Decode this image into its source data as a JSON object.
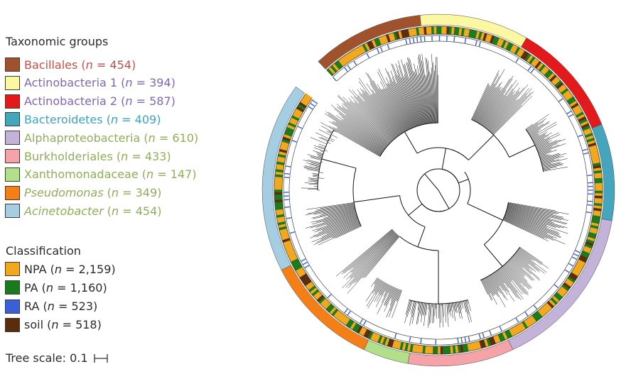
{
  "legend": {
    "taxonomic_title": "Taxonomic groups",
    "taxa": [
      {
        "name": "Bacillales",
        "count": "454",
        "italic_name": false,
        "swatch": "#a0522d",
        "text_color": "#c2504a"
      },
      {
        "name": "Actinobacteria 1",
        "count": "394",
        "italic_name": false,
        "swatch": "#fbf7a2",
        "text_color": "#7e68b4"
      },
      {
        "name": "Actinobacteria 2",
        "count": "587",
        "italic_name": false,
        "swatch": "#e31a1c",
        "text_color": "#7e68b4"
      },
      {
        "name": "Bacteroidetes",
        "count": "409",
        "italic_name": false,
        "swatch": "#45a5bd",
        "text_color": "#3ea3bf"
      },
      {
        "name": "Alphaproteobacteria",
        "count": "610",
        "italic_name": false,
        "swatch": "#c4b3d8",
        "text_color": "#8fae59"
      },
      {
        "name": "Burkholderiales",
        "count": "433",
        "italic_name": false,
        "swatch": "#f5a3a8",
        "text_color": "#8fae59"
      },
      {
        "name": "Xanthomonadaceae",
        "count": "147",
        "italic_name": false,
        "swatch": "#b2df8a",
        "text_color": "#8fae59"
      },
      {
        "name": "Pseudomonas",
        "count": "349",
        "italic_name": true,
        "swatch": "#f57f17",
        "text_color": "#8fae59"
      },
      {
        "name": "Acinetobacter",
        "count": "454",
        "italic_name": true,
        "swatch": "#a6cee3",
        "text_color": "#8fae59"
      }
    ],
    "classification_title": "Classification",
    "classes": [
      {
        "name": "NPA",
        "count": "2,159",
        "swatch": "#f2a81d",
        "text_color": "#2b2b2b"
      },
      {
        "name": "PA",
        "count": "1,160",
        "swatch": "#1b7a1b",
        "text_color": "#2b2b2b"
      },
      {
        "name": "RA",
        "count": "523",
        "swatch": "#3a5fd6",
        "text_color": "#2b2b2b"
      },
      {
        "name": "soil",
        "count": "518",
        "swatch": "#5a2d0c",
        "text_color": "#2b2b2b"
      }
    ],
    "n_symbol": "n",
    "equals": " = ",
    "tree_scale_label": "Tree scale: 0.1"
  },
  "tree": {
    "taxa_ring_order": [
      "Bacillales",
      "Actinobacteria 1",
      "Actinobacteria 2",
      "Bacteroidetes",
      "Alphaproteobacteria",
      "Burkholderiales",
      "Xanthomonadaceae",
      "Pseudomonas",
      "Acinetobacter"
    ],
    "gap_label": ""
  }
}
